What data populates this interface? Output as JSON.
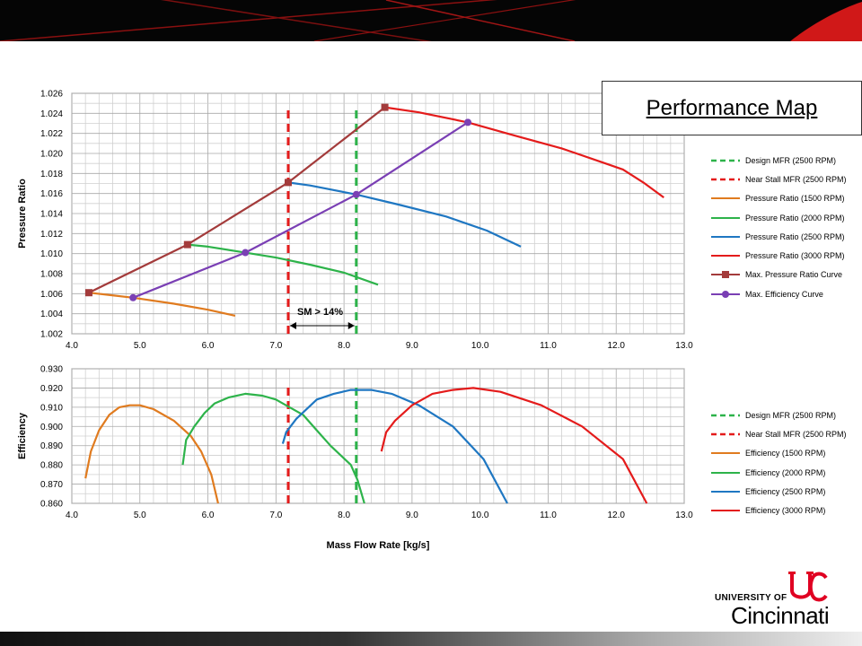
{
  "title": "Performance Map",
  "logo": {
    "line1": "UNIVERSITY OF",
    "line2": "Cincinnati"
  },
  "chart_data": [
    {
      "type": "line",
      "xlabel": "",
      "ylabel": "Pressure Ratio",
      "xlim": [
        4.0,
        13.0
      ],
      "ylim": [
        1.002,
        1.026
      ],
      "x_ticks": [
        4.0,
        5.0,
        6.0,
        7.0,
        8.0,
        9.0,
        10.0,
        11.0,
        12.0,
        13.0
      ],
      "y_ticks": [
        1.002,
        1.004,
        1.006,
        1.008,
        1.01,
        1.012,
        1.014,
        1.016,
        1.018,
        1.02,
        1.022,
        1.024,
        1.026
      ],
      "x_tick_labels": [
        "4.0",
        "5.0",
        "6.0",
        "7.0",
        "8.0",
        "9.0",
        "10.0",
        "11.0",
        "12.0",
        "13.0"
      ],
      "y_tick_labels": [
        "1.002",
        "1.004",
        "1.006",
        "1.008",
        "1.010",
        "1.012",
        "1.014",
        "1.016",
        "1.018",
        "1.020",
        "1.022",
        "1.024",
        "1.026"
      ],
      "grid": true,
      "legend_position": "right",
      "annotation": {
        "text": "SM > 14%",
        "x_from": 7.18,
        "x_to": 8.18,
        "y": 1.0037
      },
      "series": [
        {
          "name": "Design MFR (2500 RPM)",
          "color": "#2db34a",
          "dashed": true,
          "points": [
            [
              8.18,
              1.002
            ],
            [
              8.18,
              1.0245
            ]
          ]
        },
        {
          "name": "Near Stall MFR (2500 RPM)",
          "color": "#e41b1b",
          "dashed": true,
          "points": [
            [
              7.18,
              1.002
            ],
            [
              7.18,
              1.0245
            ]
          ]
        },
        {
          "name": "Pressure Ratio (1500 RPM)",
          "color": "#e07b1f",
          "points": [
            [
              4.25,
              1.0061
            ],
            [
              4.9,
              1.0056
            ],
            [
              5.5,
              1.005
            ],
            [
              6.0,
              1.0044
            ],
            [
              6.4,
              1.0038
            ]
          ]
        },
        {
          "name": "Pressure Ratio (2000 RPM)",
          "color": "#2db34a",
          "points": [
            [
              5.7,
              1.0109
            ],
            [
              6.0,
              1.0107
            ],
            [
              6.55,
              1.0101
            ],
            [
              7.0,
              1.0096
            ],
            [
              7.5,
              1.0089
            ],
            [
              8.0,
              1.0081
            ],
            [
              8.5,
              1.0069
            ]
          ]
        },
        {
          "name": "Pressure Ratio (2500 RPM)",
          "color": "#1f77c2",
          "points": [
            [
              7.18,
              1.0171
            ],
            [
              7.5,
              1.0168
            ],
            [
              8.18,
              1.0159
            ],
            [
              8.8,
              1.0149
            ],
            [
              9.5,
              1.0137
            ],
            [
              10.1,
              1.0123
            ],
            [
              10.6,
              1.0107
            ]
          ]
        },
        {
          "name": "Pressure Ratio (3000 RPM)",
          "color": "#e41b1b",
          "points": [
            [
              8.6,
              1.0246
            ],
            [
              9.1,
              1.0241
            ],
            [
              9.82,
              1.0231
            ],
            [
              10.5,
              1.0218
            ],
            [
              11.2,
              1.0205
            ],
            [
              11.8,
              1.0191
            ],
            [
              12.1,
              1.0184
            ],
            [
              12.4,
              1.0171
            ],
            [
              12.7,
              1.0156
            ]
          ]
        },
        {
          "name": "Max. Pressure Ratio Curve",
          "color": "#a33b3b",
          "marker": "square",
          "points": [
            [
              4.25,
              1.0061
            ],
            [
              5.7,
              1.0109
            ],
            [
              7.18,
              1.0171
            ],
            [
              8.6,
              1.0246
            ]
          ]
        },
        {
          "name": "Max. Efficiency Curve",
          "color": "#7a3fb4",
          "marker": "circle",
          "points": [
            [
              4.9,
              1.0056
            ],
            [
              6.55,
              1.0101
            ],
            [
              8.18,
              1.0159
            ],
            [
              9.82,
              1.0231
            ]
          ]
        }
      ]
    },
    {
      "type": "line",
      "xlabel": "Mass Flow Rate [kg/s]",
      "ylabel": "Efficiency",
      "xlim": [
        4.0,
        13.0
      ],
      "ylim": [
        0.86,
        0.93
      ],
      "x_ticks": [
        4.0,
        5.0,
        6.0,
        7.0,
        8.0,
        9.0,
        10.0,
        11.0,
        12.0,
        13.0
      ],
      "y_ticks": [
        0.86,
        0.87,
        0.88,
        0.89,
        0.9,
        0.91,
        0.92,
        0.93
      ],
      "x_tick_labels": [
        "4.0",
        "5.0",
        "6.0",
        "7.0",
        "8.0",
        "9.0",
        "10.0",
        "11.0",
        "12.0",
        "13.0"
      ],
      "y_tick_labels": [
        "0.860",
        "0.870",
        "0.880",
        "0.890",
        "0.900",
        "0.910",
        "0.920",
        "0.930"
      ],
      "grid": true,
      "legend_position": "right",
      "series": [
        {
          "name": "Design MFR (2500 RPM)",
          "color": "#2db34a",
          "dashed": true,
          "points": [
            [
              8.18,
              0.86
            ],
            [
              8.18,
              0.921
            ]
          ]
        },
        {
          "name": "Near Stall MFR (2500 RPM)",
          "color": "#e41b1b",
          "dashed": true,
          "points": [
            [
              7.18,
              0.86
            ],
            [
              7.18,
              0.921
            ]
          ]
        },
        {
          "name": "Efficiency (1500 RPM)",
          "color": "#e07b1f",
          "points": [
            [
              4.2,
              0.873
            ],
            [
              4.28,
              0.887
            ],
            [
              4.4,
              0.898
            ],
            [
              4.55,
              0.906
            ],
            [
              4.7,
              0.91
            ],
            [
              4.85,
              0.911
            ],
            [
              5.0,
              0.911
            ],
            [
              5.2,
              0.909
            ],
            [
              5.5,
              0.903
            ],
            [
              5.75,
              0.895
            ],
            [
              5.9,
              0.887
            ],
            [
              6.05,
              0.875
            ],
            [
              6.15,
              0.86
            ]
          ]
        },
        {
          "name": "Efficiency (2000 RPM)",
          "color": "#2db34a",
          "points": [
            [
              5.63,
              0.88
            ],
            [
              5.68,
              0.893
            ],
            [
              5.8,
              0.9
            ],
            [
              5.95,
              0.907
            ],
            [
              6.1,
              0.912
            ],
            [
              6.3,
              0.915
            ],
            [
              6.55,
              0.917
            ],
            [
              6.8,
              0.916
            ],
            [
              7.0,
              0.914
            ],
            [
              7.2,
              0.91
            ],
            [
              7.4,
              0.906
            ],
            [
              7.6,
              0.898
            ],
            [
              7.8,
              0.89
            ],
            [
              8.1,
              0.88
            ],
            [
              8.2,
              0.872
            ],
            [
              8.3,
              0.86
            ]
          ]
        },
        {
          "name": "Efficiency (2500 RPM)",
          "color": "#1f77c2",
          "points": [
            [
              7.1,
              0.891
            ],
            [
              7.15,
              0.897
            ],
            [
              7.3,
              0.904
            ],
            [
              7.6,
              0.914
            ],
            [
              7.85,
              0.917
            ],
            [
              8.1,
              0.919
            ],
            [
              8.4,
              0.919
            ],
            [
              8.7,
              0.917
            ],
            [
              9.1,
              0.911
            ],
            [
              9.6,
              0.9
            ],
            [
              10.05,
              0.883
            ],
            [
              10.4,
              0.86
            ]
          ]
        },
        {
          "name": "Efficiency (3000 RPM)",
          "color": "#e41b1b",
          "points": [
            [
              8.55,
              0.887
            ],
            [
              8.62,
              0.897
            ],
            [
              8.75,
              0.903
            ],
            [
              9.0,
              0.911
            ],
            [
              9.3,
              0.917
            ],
            [
              9.6,
              0.919
            ],
            [
              9.9,
              0.92
            ],
            [
              10.3,
              0.918
            ],
            [
              10.9,
              0.911
            ],
            [
              11.5,
              0.9
            ],
            [
              12.1,
              0.883
            ],
            [
              12.45,
              0.86
            ]
          ]
        }
      ]
    }
  ]
}
